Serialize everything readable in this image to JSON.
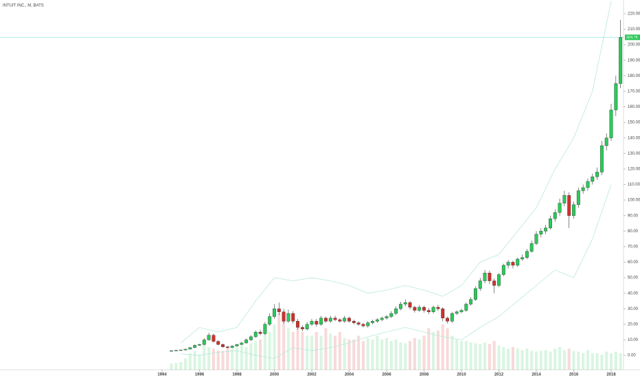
{
  "chart_data": {
    "type": "candlestick",
    "title": "INTUIT INC., M, BATS",
    "up_color": "#2bc95a",
    "down_color": "#d0312d",
    "band_color": "#b8e8dc",
    "price_line_color": "#9fe8e0",
    "xlim": [
      1985.34,
      2018.66
    ],
    "ylim": [
      -9.26,
      228.8
    ],
    "xticks": [
      1994,
      1996,
      1998,
      2000,
      2002,
      2004,
      2006,
      2008,
      2010,
      2012,
      2014,
      2016,
      2018
    ],
    "yticks": [
      {
        "value": 0,
        "label": "0.00"
      },
      {
        "value": 10,
        "label": "10.00"
      },
      {
        "value": 20,
        "label": "20.00"
      },
      {
        "value": 30,
        "label": "30.00"
      },
      {
        "value": 40,
        "label": "40.00"
      },
      {
        "value": 50,
        "label": "50.00"
      },
      {
        "value": 60,
        "label": "60.00"
      },
      {
        "value": 70,
        "label": "70.00"
      },
      {
        "value": 80,
        "label": "80.00"
      },
      {
        "value": 90,
        "label": "90.00"
      },
      {
        "value": 100,
        "label": "100.00"
      },
      {
        "value": 110,
        "label": "110.00"
      },
      {
        "value": 120,
        "label": "120.00"
      },
      {
        "value": 130,
        "label": "130.00"
      },
      {
        "value": 140,
        "label": "140.00"
      },
      {
        "value": 150,
        "label": "150.00"
      },
      {
        "value": 160,
        "label": "160.00"
      },
      {
        "value": 170,
        "label": "170.00"
      },
      {
        "value": 180,
        "label": "180.00"
      },
      {
        "value": 190,
        "label": "190.00"
      },
      {
        "value": 200,
        "label": "200.00"
      },
      {
        "value": 210,
        "label": "210.00"
      },
      {
        "value": 220,
        "label": "220.00"
      }
    ],
    "price_line": 204.76,
    "x": [
      1994.5,
      1994.75,
      1995,
      1995.25,
      1995.5,
      1995.75,
      1996,
      1996.25,
      1996.5,
      1996.75,
      1997,
      1997.25,
      1997.5,
      1997.75,
      1998,
      1998.25,
      1998.5,
      1998.75,
      1999,
      1999.25,
      1999.5,
      1999.75,
      2000,
      2000.25,
      2000.5,
      2000.75,
      2001,
      2001.25,
      2001.5,
      2001.75,
      2002,
      2002.25,
      2002.5,
      2002.75,
      2003,
      2003.25,
      2003.5,
      2003.75,
      2004,
      2004.25,
      2004.5,
      2004.75,
      2005,
      2005.25,
      2005.5,
      2005.75,
      2006,
      2006.25,
      2006.5,
      2006.75,
      2007,
      2007.25,
      2007.5,
      2007.75,
      2008,
      2008.25,
      2008.5,
      2008.75,
      2009,
      2009.25,
      2009.5,
      2009.75,
      2010,
      2010.25,
      2010.5,
      2010.75,
      2011,
      2011.25,
      2011.5,
      2011.75,
      2012,
      2012.25,
      2012.5,
      2012.75,
      2013,
      2013.25,
      2013.5,
      2013.75,
      2014,
      2014.25,
      2014.5,
      2014.75,
      2015,
      2015.25,
      2015.5,
      2015.75,
      2016,
      2016.25,
      2016.5,
      2016.75,
      2017,
      2017.25,
      2017.5,
      2017.75,
      2018,
      2018.25,
      2018.5
    ],
    "open": [
      2.8,
      3,
      3.2,
      3.5,
      4,
      5,
      6.5,
      7,
      10,
      13,
      9,
      7,
      5.5,
      5,
      6,
      7,
      8,
      10,
      12,
      15,
      14,
      20,
      25,
      30,
      28,
      22,
      27,
      22,
      18,
      17,
      20,
      22,
      20,
      24,
      22,
      24,
      23,
      22,
      24,
      22,
      21,
      20,
      19,
      21,
      22,
      23,
      24,
      25,
      27,
      30,
      33,
      34,
      31,
      29,
      31,
      29,
      28,
      31,
      30,
      24,
      22,
      27,
      28,
      29,
      33,
      36,
      43,
      48,
      53,
      48,
      45,
      52,
      58,
      60,
      58,
      62,
      63,
      67,
      72,
      78,
      80,
      82,
      88,
      92,
      98,
      103,
      90,
      97,
      106,
      108,
      112,
      115,
      118,
      135,
      140,
      158,
      175
    ],
    "high": [
      3.2,
      3.4,
      3.7,
      4.3,
      5.4,
      7,
      7.5,
      11,
      14.5,
      14,
      9.8,
      7.6,
      6,
      6.5,
      7.5,
      8.6,
      10.8,
      13,
      16,
      16.5,
      21.5,
      27,
      33,
      34,
      30,
      29.5,
      28.5,
      23.5,
      19.5,
      21.5,
      23.5,
      23.5,
      25.5,
      25,
      25.5,
      25.5,
      24,
      25.5,
      25,
      23,
      22,
      21,
      22,
      23,
      24,
      25,
      26,
      28.5,
      31.5,
      34.5,
      36,
      35,
      32,
      32.5,
      32,
      30.5,
      32,
      32.5,
      31,
      25,
      28,
      29,
      30,
      34,
      37.5,
      44.5,
      50,
      55,
      54.5,
      49.5,
      53,
      59,
      61.5,
      61,
      63,
      65,
      68.5,
      74,
      80,
      82,
      84,
      90,
      94,
      101,
      106,
      105,
      99,
      108,
      110,
      114,
      117,
      121,
      138,
      143,
      162,
      180,
      216
    ],
    "low": [
      2.6,
      2.8,
      3,
      3.3,
      3.8,
      4.7,
      6.1,
      6.6,
      9.5,
      8.3,
      6.5,
      5,
      4.6,
      4.7,
      5.6,
      6.6,
      7.5,
      9.4,
      11.3,
      13,
      13.2,
      19,
      23.5,
      26,
      20.5,
      21,
      20.5,
      16.5,
      15.5,
      16,
      19,
      18.5,
      19,
      21,
      21,
      22,
      21,
      21,
      21,
      20,
      19,
      18,
      18,
      20,
      21,
      22,
      23,
      24,
      26,
      29,
      31.5,
      29.5,
      27.5,
      28,
      27.5,
      26.5,
      27,
      28.5,
      22,
      20.5,
      21,
      26,
      27,
      28,
      32,
      35,
      41.5,
      46.5,
      46,
      40,
      44,
      51,
      56,
      56,
      57,
      61,
      62,
      66,
      71,
      76,
      78,
      81,
      86,
      90,
      96,
      82,
      88,
      95,
      104,
      106,
      110,
      113,
      116,
      132,
      138,
      154,
      172
    ],
    "close": [
      3,
      3.2,
      3.5,
      4,
      5,
      6.5,
      7,
      10,
      13,
      9,
      7,
      5.5,
      5,
      6,
      7,
      8,
      10,
      12,
      15,
      14,
      20,
      25,
      30,
      28,
      22,
      27,
      22,
      18,
      17,
      20,
      22,
      20,
      24,
      22,
      24,
      23,
      22,
      24,
      22,
      21,
      20,
      19,
      21,
      22,
      23,
      24,
      25,
      27,
      30,
      33,
      34,
      31,
      29,
      31,
      29,
      28,
      31,
      30,
      24,
      22,
      27,
      28,
      29,
      33,
      36,
      43,
      48,
      53,
      48,
      45,
      52,
      58,
      60,
      58,
      62,
      63,
      67,
      72,
      78,
      80,
      82,
      88,
      92,
      98,
      103,
      90,
      97,
      106,
      108,
      112,
      115,
      118,
      135,
      140,
      158,
      175,
      204.76
    ],
    "vlim": [
      0,
      100
    ],
    "volume": [
      8,
      9,
      10,
      15,
      22,
      25,
      20,
      35,
      30,
      28,
      25,
      25,
      30,
      28,
      30,
      32,
      30,
      35,
      38,
      40,
      55,
      50,
      60,
      75,
      65,
      55,
      50,
      55,
      50,
      45,
      45,
      50,
      45,
      55,
      48,
      45,
      50,
      42,
      40,
      40,
      45,
      38,
      42,
      40,
      45,
      40,
      42,
      38,
      40,
      36,
      35,
      38,
      42,
      40,
      45,
      55,
      50,
      52,
      60,
      55,
      45,
      40,
      38,
      38,
      36,
      35,
      34,
      36,
      34,
      38,
      32,
      30,
      28,
      30,
      28,
      26,
      28,
      25,
      24,
      25,
      26,
      24,
      28,
      30,
      26,
      28,
      25,
      24,
      22,
      26,
      22,
      22,
      20,
      24,
      22,
      24,
      22
    ],
    "bands": {
      "x": [
        1995,
        1996,
        1997,
        1998,
        1999,
        2000,
        2001,
        2002,
        2003,
        2004,
        2005,
        2006,
        2007,
        2008,
        2009,
        2010,
        2011,
        2012,
        2013,
        2014,
        2015,
        2016,
        2017,
        2018
      ],
      "upper": [
        8,
        18,
        15,
        18,
        35,
        50,
        48,
        50,
        48,
        45,
        40,
        42,
        45,
        42,
        38,
        45,
        60,
        65,
        80,
        95,
        120,
        140,
        170,
        228
      ],
      "lower": [
        1,
        0,
        2,
        3,
        0,
        -2,
        5,
        3,
        5,
        8,
        12,
        15,
        18,
        15,
        12,
        10,
        18,
        25,
        35,
        45,
        55,
        50,
        75,
        110
      ]
    }
  }
}
